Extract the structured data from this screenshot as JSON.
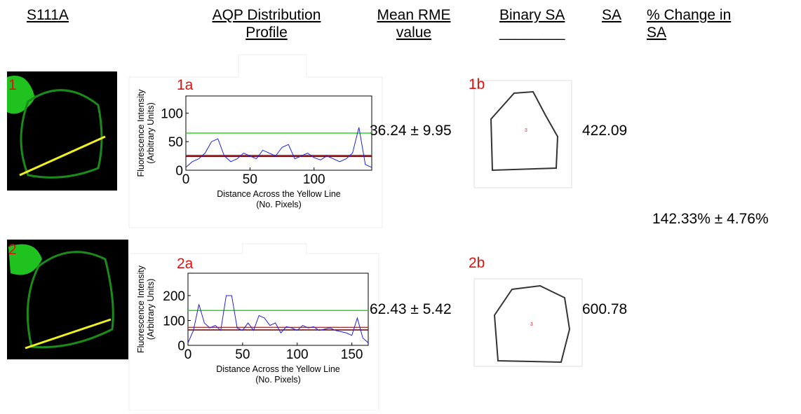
{
  "header": [
    {
      "lines": [
        "S111A"
      ]
    },
    {
      "lines": [
        "AQP Distribution",
        "Profile"
      ]
    },
    {
      "lines": [
        "Mean RME",
        "value"
      ]
    },
    {
      "lines": [
        "Binary SA",
        "________"
      ]
    },
    {
      "lines": [
        "SA"
      ]
    },
    {
      "lines": [
        "% Change in",
        "SA"
      ]
    }
  ],
  "rows": [
    {
      "label": "1",
      "plot": {
        "type": "line",
        "label": "1a",
        "ylabel": [
          "Fluorescence Intensity",
          "(Arbitrary Units)"
        ],
        "xlabel": [
          "Distance Across the Yellow Line",
          "(No. Pixels)"
        ],
        "xlim": [
          0,
          145
        ],
        "ylim": [
          0,
          130
        ],
        "xticks": [
          0,
          50,
          100
        ],
        "yticks": [
          0,
          50,
          100
        ],
        "color": "#2020e0",
        "x": [
          0,
          5,
          10,
          15,
          20,
          25,
          30,
          35,
          40,
          45,
          50,
          55,
          60,
          65,
          70,
          75,
          80,
          85,
          90,
          95,
          100,
          105,
          110,
          115,
          120,
          125,
          130,
          135,
          140,
          145
        ],
        "values": [
          5,
          15,
          20,
          30,
          50,
          55,
          25,
          15,
          20,
          30,
          25,
          20,
          35,
          30,
          25,
          40,
          45,
          20,
          25,
          30,
          22,
          18,
          25,
          20,
          15,
          20,
          30,
          75,
          10,
          5
        ],
        "hlines": [
          {
            "value": 65,
            "color": "#30d030"
          },
          {
            "value": 26,
            "color": "#e02020"
          },
          {
            "value": 24,
            "color": "#600000"
          }
        ]
      },
      "rme": "36.24 ± 9.95",
      "binary_label": "1b",
      "cell_id": "3",
      "sa": "422.09"
    },
    {
      "label": "2",
      "plot": {
        "type": "line",
        "label": "2a",
        "ylabel": [
          "Fluorescence Intensity",
          "(Arbitrary Units)"
        ],
        "xlabel": [
          "Distance Across the Yellow Line",
          "(No. Pixels)"
        ],
        "xlim": [
          0,
          165
        ],
        "ylim": [
          0,
          290
        ],
        "xticks": [
          0,
          50,
          100,
          150
        ],
        "yticks": [
          0,
          100,
          200
        ],
        "color": "#2020e0",
        "x": [
          0,
          5,
          10,
          15,
          20,
          25,
          30,
          35,
          40,
          45,
          50,
          55,
          60,
          65,
          70,
          75,
          80,
          85,
          90,
          95,
          100,
          105,
          110,
          115,
          120,
          125,
          130,
          135,
          140,
          145,
          150,
          155,
          160,
          165
        ],
        "values": [
          10,
          60,
          165,
          90,
          70,
          80,
          60,
          200,
          200,
          70,
          60,
          90,
          60,
          120,
          110,
          80,
          90,
          50,
          75,
          70,
          60,
          80,
          70,
          75,
          60,
          65,
          70,
          60,
          55,
          50,
          40,
          110,
          30,
          10
        ],
        "hlines": [
          {
            "value": 140,
            "color": "#30d030"
          },
          {
            "value": 72,
            "color": "#e02020"
          },
          {
            "value": 62,
            "color": "#600000"
          }
        ]
      },
      "rme": "62.43 ± 5.42",
      "binary_label": "2b",
      "cell_id": "3",
      "sa": "600.78"
    }
  ],
  "change": "142.33% ± 4.76%"
}
